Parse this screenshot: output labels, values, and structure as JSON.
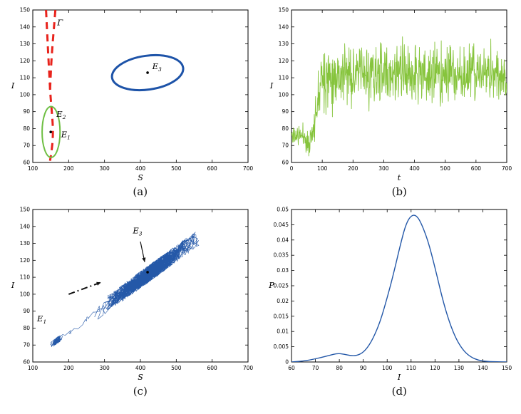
{
  "figure": {
    "background": "#ffffff",
    "panels": [
      {
        "id": "a",
        "caption": "(a)"
      },
      {
        "id": "b",
        "caption": "(b)"
      },
      {
        "id": "c",
        "caption": "(c)"
      },
      {
        "id": "d",
        "caption": "(d)"
      }
    ]
  },
  "colors": {
    "axis": "#000000",
    "gamma_red": "#e8231c",
    "ellipse_green": "#6fbf44",
    "ellipse_blue": "#1d53a8",
    "series_green": "#86c43c",
    "series_blue": "#2458a8",
    "annotation_black": "#111111"
  },
  "chart_data": [
    {
      "id": "a",
      "type": "line",
      "title": "",
      "xlabel": "S",
      "ylabel": "I",
      "xlim": [
        100,
        700
      ],
      "ylim": [
        60,
        150
      ],
      "xticks": [
        100,
        200,
        300,
        400,
        500,
        600,
        700
      ],
      "yticks": [
        60,
        70,
        80,
        90,
        100,
        110,
        120,
        130,
        140,
        150
      ],
      "curves": [
        {
          "name": "gamma-branch-left",
          "color": "gamma_red",
          "width": 3,
          "dash": "10 7",
          "smooth": true,
          "points": [
            [
              137,
              150
            ],
            [
              140,
              137
            ],
            [
              143,
              124
            ],
            [
              146,
              112
            ],
            [
              149,
              100
            ],
            [
              153,
              90
            ],
            [
              156,
              82
            ],
            [
              156,
              74
            ],
            [
              152,
              66
            ],
            [
              148,
              61
            ]
          ]
        },
        {
          "name": "gamma-branch-right",
          "color": "gamma_red",
          "width": 3,
          "dash": "10 7",
          "smooth": true,
          "points": [
            [
              163,
              150
            ],
            [
              158,
              137
            ],
            [
              153,
              124
            ],
            [
              150,
              112
            ],
            [
              148,
              103
            ]
          ]
        }
      ],
      "ellipses": [
        {
          "name": "equilibrium-E1-ellipse",
          "color": "ellipse_green",
          "width": 2,
          "cx": 151,
          "cy": 78,
          "rx": 25,
          "ry": 15,
          "rotate": 0
        },
        {
          "name": "equilibrium-E3-ellipse",
          "color": "ellipse_blue",
          "width": 3,
          "cx": 420,
          "cy": 113,
          "rx": 100,
          "ry": 10,
          "rotate": -8
        }
      ],
      "markers": [
        {
          "x": 150,
          "y": 78
        },
        {
          "x": 420,
          "y": 113
        }
      ],
      "labels": [
        {
          "base": "Γ",
          "sub": "",
          "x": 168,
          "y": 141
        },
        {
          "base": "E",
          "sub": "2",
          "x": 166,
          "y": 87
        },
        {
          "base": "E",
          "sub": "1",
          "x": 179,
          "y": 75
        },
        {
          "base": "E",
          "sub": "3",
          "x": 433,
          "y": 115
        }
      ]
    },
    {
      "id": "b",
      "type": "line",
      "title": "",
      "xlabel": "t",
      "ylabel": "I",
      "xlim": [
        0,
        700
      ],
      "ylim": [
        60,
        150
      ],
      "xticks": [
        0,
        100,
        200,
        300,
        400,
        500,
        600,
        700
      ],
      "yticks": [
        60,
        70,
        80,
        90,
        100,
        110,
        120,
        130,
        140,
        150
      ],
      "series": [
        {
          "name": "I-time-series",
          "color": "series_green",
          "width": 0.9,
          "description": "Single noisy realization of I(t): fluctuates near 76 for t<70 (dip to ~65 near t=50), rises sharply around t=75-95, then fluctuates about ~112 (range roughly 90-140) up to t=700.",
          "generator": {
            "kind": "noisy-segments",
            "seed": 11,
            "dt": 1,
            "clip": [
              63,
              141
            ],
            "segments": [
              {
                "t0": 0,
                "t1": 45,
                "mean": 76,
                "sd": 3
              },
              {
                "t0": 45,
                "t1": 60,
                "mean": 71,
                "sd": 3.5
              },
              {
                "t0": 60,
                "t1": 73,
                "mean": 77,
                "sd": 3
              },
              {
                "t0": 73,
                "t1": 95,
                "ramp": [
                  80,
                  113
                ],
                "sd": 7
              },
              {
                "t0": 95,
                "t1": 700,
                "mean": 112,
                "sd": 8.5
              }
            ]
          }
        }
      ]
    },
    {
      "id": "c",
      "type": "line",
      "title": "",
      "xlabel": "S",
      "ylabel": "I",
      "xlim": [
        100,
        700
      ],
      "ylim": [
        60,
        150
      ],
      "xticks": [
        100,
        200,
        300,
        400,
        500,
        600,
        700
      ],
      "yticks": [
        60,
        70,
        80,
        90,
        100,
        110,
        120,
        130,
        140,
        150
      ],
      "series": [
        {
          "name": "stochastic-trajectory",
          "color": "series_blue",
          "width": 0.6,
          "description": "Stochastic trajectory in the (S,I) plane: starts near E1 (~150,68), climbs along I ≈ 70 + 0.154(S-150), then wanders densely around E3 (~420,113) covering S ≈ 300-560, I ≈ 95-135.",
          "generator": {
            "kind": "random-walk-2d",
            "seed": 5,
            "steps": 1900,
            "start_s": 152,
            "hold_steps": 150,
            "hold_attractor": 168,
            "attractor_s": 430,
            "pull": 0.03,
            "s_noise": 24,
            "i_noise": 5,
            "noise_ramp_steps": 500,
            "line": {
              "s_ref": 150,
              "i_ref": 70,
              "slope": 0.154
            },
            "s_range": [
              140,
              635
            ],
            "i_range": [
              63,
              144
            ]
          }
        }
      ],
      "markers": [
        {
          "x": 420,
          "y": 113
        }
      ],
      "labels": [
        {
          "base": "E",
          "sub": "1",
          "x": 112,
          "y": 84
        }
      ],
      "annotations": [
        {
          "kind": "dashdot-arrow",
          "from": [
            200,
            100
          ],
          "to": [
            290,
            107
          ],
          "width": 2
        },
        {
          "kind": "label-arrow",
          "label": {
            "base": "E",
            "sub": "3"
          },
          "label_x": 392,
          "label_y": 136,
          "from": [
            400,
            131
          ],
          "to": [
            412,
            119
          ],
          "width": 1.2
        }
      ]
    },
    {
      "id": "d",
      "type": "line",
      "title": "",
      "xlabel": "I",
      "ylabel": "P",
      "xlim": [
        60,
        150
      ],
      "ylim": [
        0,
        0.05
      ],
      "xticks": [
        60,
        70,
        80,
        90,
        100,
        110,
        120,
        130,
        140,
        150
      ],
      "yticks": [
        0,
        0.005,
        0.01,
        0.015,
        0.02,
        0.025,
        0.03,
        0.035,
        0.04,
        0.045,
        0.05
      ],
      "ytick_labels": [
        "0",
        "0.005",
        "0.01",
        "0.015",
        "0.02",
        "0.025",
        "0.03",
        "0.035",
        "0.04",
        "0.045",
        "0.05"
      ],
      "series": [
        {
          "name": "stationary-density",
          "color": "series_blue",
          "width": 1.4,
          "smooth": true,
          "description": "Stationary probability density of I: small bump near I≈80 (P≈0.003), main peak at I≈110-111 with P≈0.048, decaying to 0 by I≈145.",
          "points": [
            [
              60,
              0
            ],
            [
              64,
              0.0002
            ],
            [
              68,
              0.0007
            ],
            [
              72,
              0.0014
            ],
            [
              76,
              0.0022
            ],
            [
              79,
              0.0028
            ],
            [
              82,
              0.0026
            ],
            [
              85,
              0.002
            ],
            [
              88,
              0.0022
            ],
            [
              91,
              0.0038
            ],
            [
              94,
              0.0075
            ],
            [
              97,
              0.013
            ],
            [
              100,
              0.021
            ],
            [
              103,
              0.03
            ],
            [
              106,
              0.04
            ],
            [
              108,
              0.0455
            ],
            [
              110,
              0.048
            ],
            [
              112,
              0.0482
            ],
            [
              114,
              0.046
            ],
            [
              117,
              0.04
            ],
            [
              120,
              0.031
            ],
            [
              123,
              0.021
            ],
            [
              126,
              0.013
            ],
            [
              129,
              0.0072
            ],
            [
              132,
              0.0036
            ],
            [
              135,
              0.0016
            ],
            [
              138,
              0.0006
            ],
            [
              141,
              0.0002
            ],
            [
              145,
              0.0001
            ],
            [
              150,
              0
            ]
          ]
        }
      ]
    }
  ]
}
